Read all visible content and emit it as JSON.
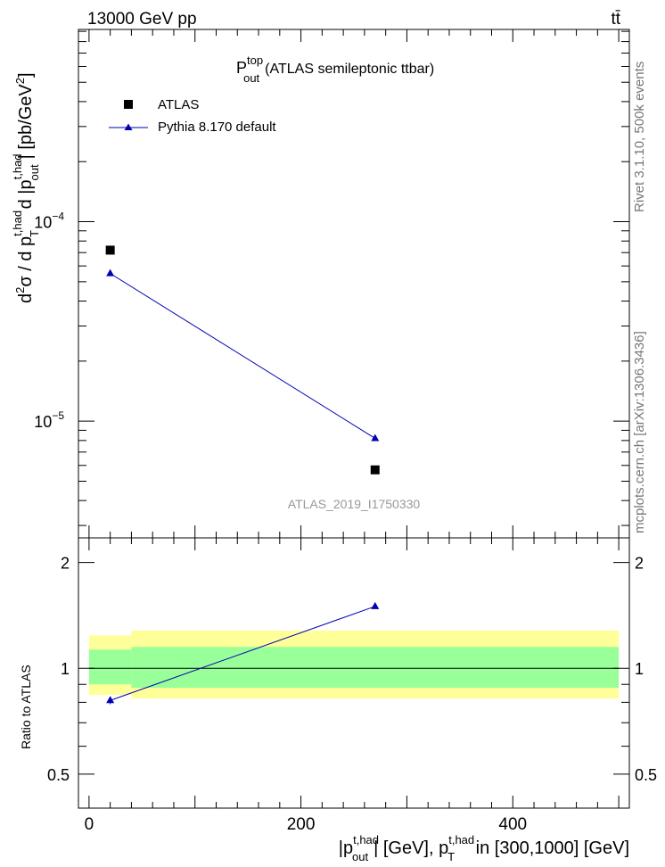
{
  "header": {
    "left": "13000 GeV pp",
    "right": "tt̄"
  },
  "side_labels": {
    "rivet": "Rivet 3.1.10,  500k events",
    "mcplots": "mcplots.cern.ch [arXiv:1306.3436]"
  },
  "chart_data": {
    "type": "scatter",
    "title": "P_out^top (ATLAS semileptonic ttbar)",
    "title_main": "P",
    "title_sup": "top",
    "title_sub": "out",
    "title_rest": "(ATLAS semileptonic ttbar)",
    "analysis_label": "ATLAS_2019_I1750330",
    "xlabel": "|p_out^t,had| [GeV], p_T^t,had in [300,1000] [GeV]",
    "ylabel": "d²σ / d p_T^t,had d |p_out^t,had| [pb/GeV²]",
    "xlim": [
      -10,
      510
    ],
    "x_ticks": [
      0,
      200,
      400
    ],
    "main_panel": {
      "yscale": "log",
      "ylim": [
        2.6e-06,
        0.00092
      ],
      "ytick_labels": [
        {
          "value": 0.0001,
          "mantissa": "10",
          "exp": "−4"
        },
        {
          "value": 1e-05,
          "mantissa": "10",
          "exp": "−5"
        }
      ]
    },
    "ratio_panel": {
      "ylabel": "Ratio to ATLAS",
      "yscale": "log",
      "ylim": [
        0.4,
        2.35
      ],
      "ytick_labels": [
        {
          "value": 0.5,
          "label": "0.5"
        },
        {
          "value": 1,
          "label": "1"
        },
        {
          "value": 2,
          "label": "2"
        }
      ],
      "bands": [
        {
          "x": [
            0,
            40
          ],
          "green": [
            0.9,
            1.13
          ],
          "yellow": [
            0.84,
            1.24
          ]
        },
        {
          "x": [
            40,
            500
          ],
          "green": [
            0.88,
            1.15
          ],
          "yellow": [
            0.82,
            1.28
          ]
        }
      ]
    },
    "series": [
      {
        "name": "ATLAS",
        "marker": "square",
        "color": "#000000",
        "x": [
          20,
          270
        ],
        "y": [
          7.2e-05,
          5.7e-06
        ]
      },
      {
        "name": "Pythia 8.170 default",
        "marker": "triangle",
        "color": "#0000b4",
        "x": [
          20,
          270
        ],
        "y": [
          5.5e-05,
          8.2e-06
        ],
        "ratio": [
          0.81,
          1.5
        ],
        "ratio_err": [
          0.02,
          0.0
        ]
      }
    ]
  }
}
